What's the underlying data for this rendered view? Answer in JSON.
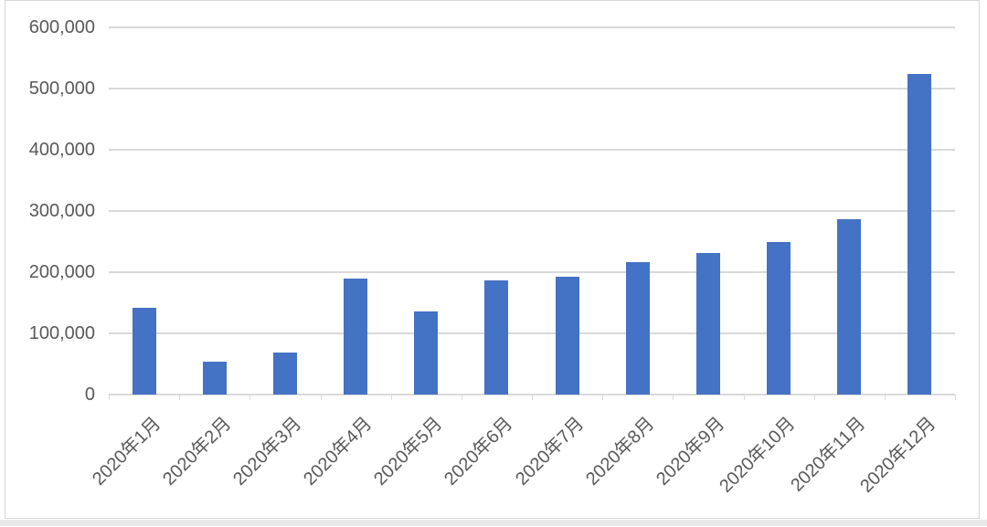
{
  "chart_data": {
    "type": "bar",
    "title": "",
    "xlabel": "",
    "ylabel": "",
    "categories": [
      "2020年1月",
      "2020年2月",
      "2020年3月",
      "2020年4月",
      "2020年5月",
      "2020年6月",
      "2020年7月",
      "2020年8月",
      "2020年9月",
      "2020年10月",
      "2020年11月",
      "2020年12月"
    ],
    "values": [
      142000,
      54000,
      68000,
      190000,
      136000,
      187000,
      193000,
      216000,
      232000,
      250000,
      286000,
      524000
    ],
    "ylim": [
      0,
      600000
    ],
    "ytick_values": [
      0,
      100000,
      200000,
      300000,
      400000,
      500000,
      600000
    ],
    "ytick_labels": [
      "0",
      "100,000",
      "200,000",
      "300,000",
      "400,000",
      "500,000",
      "600,000"
    ],
    "x_tick_label_rotation_deg": 45,
    "grid": "horizontal",
    "legend": "none",
    "colors": {
      "bar_fill": "#4472c4",
      "gridline": "#d9d9d9",
      "axis_line": "#d9d9d9",
      "tick_mark": "#d9d9d9",
      "tick_label_text": "#595959",
      "frame_border": "#d6d6d6"
    }
  }
}
